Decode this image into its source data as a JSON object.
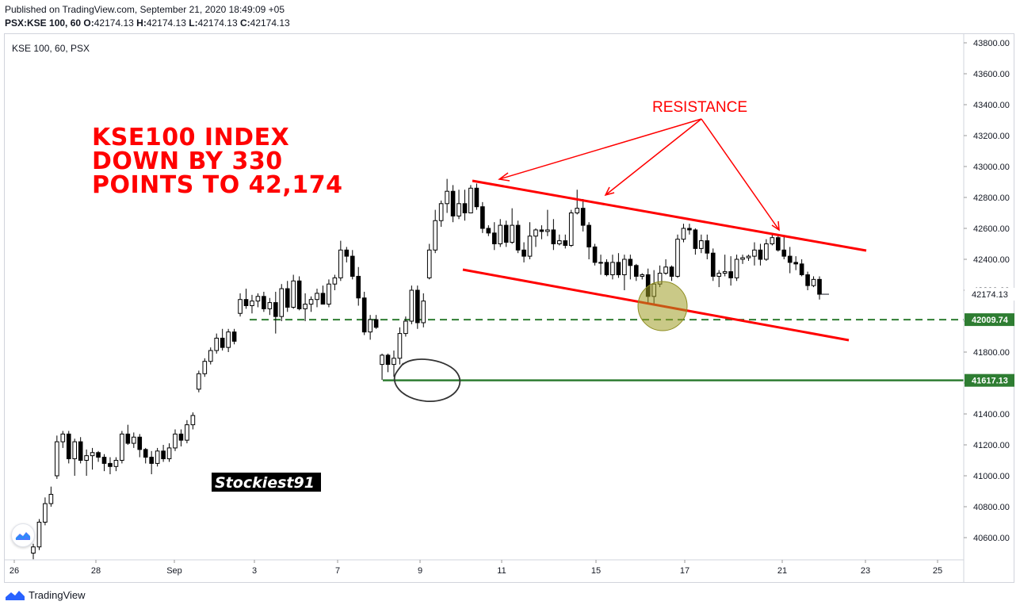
{
  "header": {
    "published": "Published on TradingView.com, September 21, 2020 18:49:09 +05",
    "symbol": "PSX:KSE 100, 60",
    "o_label": "O:",
    "o_value": "42174.13",
    "h_label": "H:",
    "h_value": "42174.13",
    "l_label": "L:",
    "l_value": "42174.13",
    "c_label": "C:",
    "c_value": "42174.13"
  },
  "chart_label": "KSE 100, 60, PSX",
  "footer": {
    "brand": "TradingView"
  },
  "colors": {
    "up": "#ffffff",
    "down": "#000000",
    "wick": "#000000",
    "annotation": "#ff0000",
    "support": "#2e7d32",
    "highlight": "#9e9d24"
  },
  "chart_data": {
    "type": "candlestick",
    "y_axis": {
      "min": 40450,
      "max": 43900,
      "ticks": [
        40600,
        40800,
        41000,
        41200,
        41400,
        41600,
        41800,
        42000,
        42200,
        42400,
        42600,
        42800,
        43000,
        43200,
        43400,
        43600,
        43800
      ],
      "tick_labels": [
        "40600.00",
        "40800.00",
        "41000.00",
        "41200.00",
        "41400.00",
        "41600.00",
        "41800.00",
        "42000.00",
        "42200.00",
        "42400.00",
        "42600.00",
        "42800.00",
        "43000.00",
        "43200.00",
        "43400.00",
        "43600.00",
        "43800.00"
      ]
    },
    "x_axis": {
      "labels": [
        "26",
        "28",
        "Sep",
        "3",
        "7",
        "9",
        "11",
        "15",
        "17",
        "21",
        "23",
        "25"
      ]
    },
    "price_labels": [
      {
        "value": 42174.13,
        "text": "42174.13",
        "style": "last"
      },
      {
        "value": 42009.74,
        "text": "42009.74",
        "style": "support-dashed"
      },
      {
        "value": 41617.13,
        "text": "41617.13",
        "style": "support-solid"
      }
    ],
    "horizontal_lines": [
      {
        "value": 42009.74,
        "style": "dashed"
      },
      {
        "value": 41617.13,
        "style": "solid"
      }
    ],
    "annotations": {
      "headline": [
        "KSE100 INDEX",
        "DOWN BY 330",
        "POINTS TO 42,174"
      ],
      "resistance_label": "RESISTANCE",
      "watermark": "Stockiest91"
    },
    "candles": [
      [
        40500,
        40560,
        40460,
        40540
      ],
      [
        40540,
        40720,
        40520,
        40700
      ],
      [
        40700,
        40860,
        40680,
        40820
      ],
      [
        40820,
        40930,
        40800,
        40880
      ],
      [
        41000,
        41260,
        40980,
        41220
      ],
      [
        41220,
        41290,
        41180,
        41270
      ],
      [
        41270,
        41290,
        41080,
        41110
      ],
      [
        41110,
        41240,
        41000,
        41220
      ],
      [
        41220,
        41250,
        41080,
        41100
      ],
      [
        41100,
        41170,
        41000,
        41130
      ],
      [
        41130,
        41180,
        41040,
        41150
      ],
      [
        41150,
        41160,
        41090,
        41120
      ],
      [
        41120,
        41140,
        41030,
        41080
      ],
      [
        41080,
        41120,
        41010,
        41060
      ],
      [
        41060,
        41120,
        41030,
        41100
      ],
      [
        41100,
        41290,
        41080,
        41270
      ],
      [
        41270,
        41330,
        41200,
        41210
      ],
      [
        41210,
        41280,
        41180,
        41250
      ],
      [
        41250,
        41270,
        41120,
        41170
      ],
      [
        41170,
        41180,
        41080,
        41120
      ],
      [
        41120,
        41160,
        41010,
        41080
      ],
      [
        41080,
        41180,
        41060,
        41160
      ],
      [
        41160,
        41200,
        41090,
        41110
      ],
      [
        41110,
        41210,
        41090,
        41180
      ],
      [
        41180,
        41300,
        41160,
        41270
      ],
      [
        41270,
        41300,
        41190,
        41230
      ],
      [
        41230,
        41360,
        41210,
        41330
      ],
      [
        41330,
        41410,
        41300,
        41390
      ],
      [
        41560,
        41680,
        41540,
        41660
      ],
      [
        41660,
        41760,
        41640,
        41740
      ],
      [
        41740,
        41830,
        41720,
        41810
      ],
      [
        41810,
        41920,
        41790,
        41890
      ],
      [
        41890,
        41950,
        41810,
        41830
      ],
      [
        41830,
        41950,
        41800,
        41930
      ],
      [
        41930,
        41950,
        41850,
        41870
      ],
      [
        42050,
        42180,
        42030,
        42140
      ],
      [
        42140,
        42210,
        42080,
        42100
      ],
      [
        42100,
        42170,
        42050,
        42130
      ],
      [
        42130,
        42180,
        42090,
        42160
      ],
      [
        42160,
        42190,
        42060,
        42080
      ],
      [
        42080,
        42150,
        42040,
        42120
      ],
      [
        42120,
        42190,
        41920,
        42030
      ],
      [
        42030,
        42240,
        42000,
        42210
      ],
      [
        42210,
        42260,
        42060,
        42090
      ],
      [
        42090,
        42300,
        42080,
        42260
      ],
      [
        42260,
        42290,
        42070,
        42080
      ],
      [
        42080,
        42180,
        42000,
        42110
      ],
      [
        42110,
        42160,
        42060,
        42140
      ],
      [
        42140,
        42210,
        42090,
        42180
      ],
      [
        42180,
        42230,
        42130,
        42110
      ],
      [
        42110,
        42270,
        42090,
        42240
      ],
      [
        42240,
        42300,
        42200,
        42280
      ],
      [
        42280,
        42520,
        42260,
        42460
      ],
      [
        42460,
        42480,
        42380,
        42420
      ],
      [
        42420,
        42460,
        42270,
        42290
      ],
      [
        42290,
        42350,
        42100,
        42150
      ],
      [
        42150,
        42190,
        41910,
        41930
      ],
      [
        41930,
        42040,
        41880,
        42010
      ],
      [
        42010,
        42040,
        41950,
        41960
      ],
      [
        41720,
        41790,
        41620,
        41780
      ],
      [
        41780,
        41790,
        41670,
        41720
      ],
      [
        41720,
        41810,
        41640,
        41760
      ],
      [
        41760,
        41960,
        41720,
        41920
      ],
      [
        41920,
        42030,
        41900,
        42000
      ],
      [
        42000,
        42230,
        41980,
        42200
      ],
      [
        42200,
        42230,
        41950,
        41990
      ],
      [
        41990,
        42180,
        41960,
        42130
      ],
      [
        42280,
        42500,
        42270,
        42460
      ],
      [
        42460,
        42720,
        42440,
        42650
      ],
      [
        42650,
        42780,
        42610,
        42760
      ],
      [
        42760,
        42920,
        42700,
        42840
      ],
      [
        42840,
        42880,
        42640,
        42680
      ],
      [
        42680,
        42850,
        42660,
        42760
      ],
      [
        42760,
        42850,
        42650,
        42700
      ],
      [
        42700,
        42880,
        42700,
        42860
      ],
      [
        42860,
        42890,
        42720,
        42740
      ],
      [
        42740,
        42770,
        42570,
        42600
      ],
      [
        42600,
        42620,
        42550,
        42570
      ],
      [
        42570,
        42640,
        42460,
        42500
      ],
      [
        42500,
        42660,
        42480,
        42620
      ],
      [
        42620,
        42650,
        42480,
        42510
      ],
      [
        42510,
        42730,
        42500,
        42620
      ],
      [
        42620,
        42650,
        42440,
        42460
      ],
      [
        42460,
        42510,
        42380,
        42420
      ],
      [
        42420,
        42640,
        42400,
        42550
      ],
      [
        42550,
        42600,
        42480,
        42590
      ],
      [
        42590,
        42620,
        42530,
        42580
      ],
      [
        42580,
        42720,
        42550,
        42590
      ],
      [
        42590,
        42660,
        42460,
        42500
      ],
      [
        42500,
        42560,
        42490,
        42520
      ],
      [
        42520,
        42560,
        42470,
        42490
      ],
      [
        42490,
        42720,
        42480,
        42700
      ],
      [
        42700,
        42850,
        42690,
        42730
      ],
      [
        42730,
        42790,
        42580,
        42620
      ],
      [
        42620,
        42640,
        42400,
        42480
      ],
      [
        42480,
        42500,
        42360,
        42380
      ],
      [
        42380,
        42430,
        42300,
        42380
      ],
      [
        42380,
        42400,
        42290,
        42300
      ],
      [
        42300,
        42430,
        42270,
        42380
      ],
      [
        42380,
        42440,
        42280,
        42300
      ],
      [
        42300,
        42430,
        42200,
        42400
      ],
      [
        42400,
        42430,
        42270,
        42360
      ],
      [
        42360,
        42370,
        42260,
        42290
      ],
      [
        42290,
        42310,
        42270,
        42300
      ],
      [
        42300,
        42340,
        42120,
        42160
      ],
      [
        42160,
        42330,
        42100,
        42240
      ],
      [
        42240,
        42360,
        42220,
        42310
      ],
      [
        42310,
        42400,
        42300,
        42350
      ],
      [
        42350,
        42360,
        42260,
        42290
      ],
      [
        42290,
        42560,
        42280,
        42530
      ],
      [
        42530,
        42630,
        42510,
        42600
      ],
      [
        42600,
        42630,
        42560,
        42590
      ],
      [
        42590,
        42600,
        42430,
        42470
      ],
      [
        42470,
        42560,
        42440,
        42520
      ],
      [
        42520,
        42560,
        42400,
        42440
      ],
      [
        42440,
        42470,
        42260,
        42290
      ],
      [
        42290,
        42330,
        42220,
        42310
      ],
      [
        42310,
        42430,
        42290,
        42320
      ],
      [
        42320,
        42420,
        42230,
        42280
      ],
      [
        42280,
        42430,
        42260,
        42400
      ],
      [
        42400,
        42430,
        42370,
        42410
      ],
      [
        42410,
        42430,
        42390,
        42420
      ],
      [
        42420,
        42510,
        42360,
        42460
      ],
      [
        42460,
        42500,
        42360,
        42400
      ],
      [
        42400,
        42530,
        42390,
        42500
      ],
      [
        42500,
        42560,
        42490,
        42540
      ],
      [
        42540,
        42560,
        42450,
        42460
      ],
      [
        42460,
        42550,
        42400,
        42420
      ],
      [
        42420,
        42480,
        42310,
        42380
      ],
      [
        42380,
        42420,
        42330,
        42370
      ],
      [
        42370,
        42400,
        42290,
        42300
      ],
      [
        42300,
        42320,
        42200,
        42230
      ],
      [
        42230,
        42290,
        42220,
        42270
      ],
      [
        42270,
        42290,
        42140,
        42174.13
      ]
    ]
  }
}
